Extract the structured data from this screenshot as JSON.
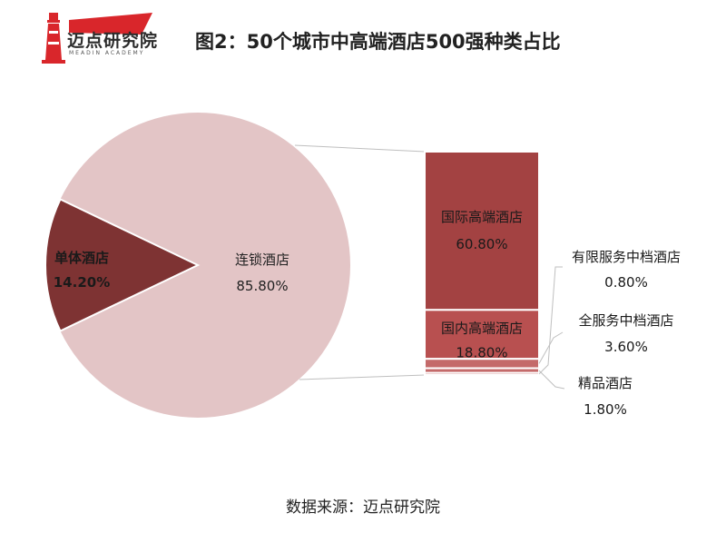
{
  "header": {
    "logo_text": "迈点研究院",
    "logo_sub": "MEADIN ACADEMY",
    "title": "图2：50个城市中高端酒店500强种类占比"
  },
  "footer": {
    "source": "数据来源：迈点研究院"
  },
  "colors": {
    "pie_chain": "#e3c5c6",
    "pie_single": "#7e3333",
    "bar_international": "#a34242",
    "bar_domestic": "#b85050",
    "bar_small": "#c46a6a",
    "connector": "#bfbfbf"
  },
  "chart_data": [
    {
      "type": "pie",
      "slices": [
        {
          "label": "连锁酒店",
          "value": 85.8,
          "value_label": "85.80%"
        },
        {
          "label": "单体酒店",
          "value": 14.2,
          "value_label": "14.20%"
        }
      ]
    },
    {
      "type": "bar",
      "stacked": true,
      "series": [
        {
          "label": "国际高端酒店",
          "value": 60.8,
          "value_label": "60.80%"
        },
        {
          "label": "国内高端酒店",
          "value": 18.8,
          "value_label": "18.80%"
        },
        {
          "label": "全服务中档酒店",
          "value": 3.6,
          "value_label": "3.60%"
        },
        {
          "label": "精品酒店",
          "value": 1.8,
          "value_label": "1.80%"
        },
        {
          "label": "有限服务中档酒店",
          "value": 0.8,
          "value_label": "0.80%"
        }
      ]
    }
  ]
}
